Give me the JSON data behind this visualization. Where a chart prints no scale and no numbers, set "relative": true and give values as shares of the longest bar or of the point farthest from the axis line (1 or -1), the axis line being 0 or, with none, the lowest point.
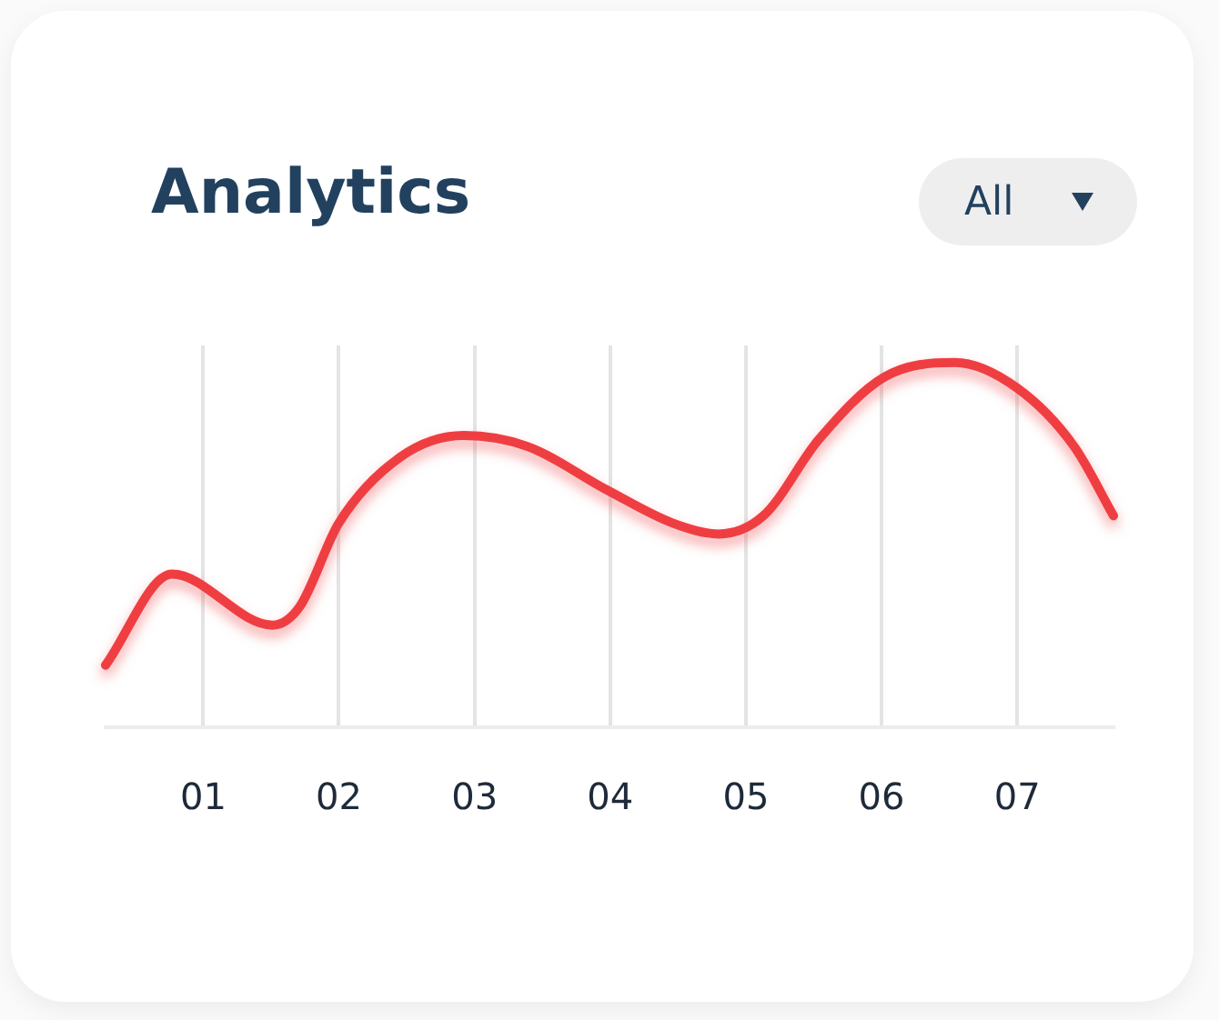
{
  "chart_data": {
    "type": "line",
    "title": "Analytics",
    "annotations": [
      "All"
    ],
    "relative": true,
    "grid": "x",
    "marker": "none",
    "line_style": "solid",
    "xlim": [
      0.28,
      7.71
    ],
    "xticks": [
      {
        "value": 1,
        "label": "01"
      },
      {
        "value": 2,
        "label": "02"
      },
      {
        "value": 3,
        "label": "03"
      },
      {
        "value": 4,
        "label": "04"
      },
      {
        "value": 5,
        "label": "05"
      },
      {
        "value": 6,
        "label": "06"
      },
      {
        "value": 7,
        "label": "07"
      }
    ],
    "series": [
      {
        "color": "#ef3e42",
        "x": [
          0.28,
          0.77,
          1.51,
          1.71,
          2.0,
          2.45,
          2.92,
          3.39,
          3.98,
          4.46,
          4.8,
          5.13,
          5.54,
          6.02,
          6.54,
          7.0,
          7.42,
          7.71
        ],
        "values": [
          0.17,
          0.42,
          0.28,
          0.33,
          0.56,
          0.74,
          0.8,
          0.77,
          0.65,
          0.56,
          0.53,
          0.58,
          0.79,
          0.96,
          1.0,
          0.93,
          0.77,
          0.58
        ]
      }
    ]
  }
}
